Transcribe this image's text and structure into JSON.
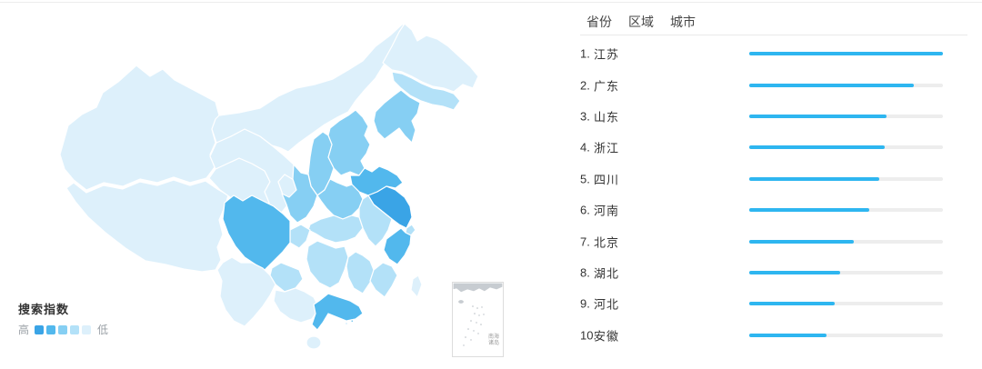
{
  "colors": {
    "bar": "#2eb6f0",
    "bar_track": "#ededed",
    "levels": [
      "#3aa4e6",
      "#52b8ed",
      "#86cff3",
      "#b3e1f8",
      "#ddf0fb"
    ],
    "map_border": "#ffffff",
    "inset_land": "#c7ccd1"
  },
  "tabs": [
    {
      "label": "省份",
      "active": true
    },
    {
      "label": "区域",
      "active": false
    },
    {
      "label": "城市",
      "active": false
    }
  ],
  "ranking": [
    {
      "rank": "1.",
      "name": "江苏",
      "percent": 100
    },
    {
      "rank": "2.",
      "name": "广东",
      "percent": 85
    },
    {
      "rank": "3.",
      "name": "山东",
      "percent": 71
    },
    {
      "rank": "4.",
      "name": "浙江",
      "percent": 70
    },
    {
      "rank": "5.",
      "name": "四川",
      "percent": 67
    },
    {
      "rank": "6.",
      "name": "河南",
      "percent": 62
    },
    {
      "rank": "7.",
      "name": "北京",
      "percent": 54
    },
    {
      "rank": "8.",
      "name": "湖北",
      "percent": 47
    },
    {
      "rank": "9.",
      "name": "河北",
      "percent": 44
    },
    {
      "rank": "10.",
      "name": "安徽",
      "percent": 40
    }
  ],
  "legend": {
    "title": "搜索指数",
    "high_label": "高",
    "low_label": "低"
  },
  "inset": {
    "label_line1": "南海",
    "label_line2": "诸岛"
  },
  "map": {
    "province_levels": {
      "xinjiang": 5,
      "xizang": 5,
      "qinghai": 5,
      "gansu": 5,
      "ningxia": 5,
      "neimenggu": 5,
      "heilongjiang": 5,
      "jilin": 4,
      "liaoning": 3,
      "hebei": 3,
      "beijing": 3,
      "tianjin": 4,
      "shanxi": 3,
      "shaanxi": 3,
      "shandong": 2,
      "henan": 3,
      "jiangsu": 1,
      "anhui": 4,
      "shanghai": 4,
      "zhejiang": 2,
      "hubei": 4,
      "chongqing": 4,
      "sichuan": 2,
      "guizhou": 4,
      "hunan": 4,
      "jiangxi": 4,
      "fujian": 4,
      "yunnan": 5,
      "guangxi": 5,
      "guangdong": 2,
      "hainan": 5,
      "taiwan": 5
    }
  },
  "chart_data": [
    {
      "type": "heatmap",
      "subtype": "china-choropleth-map",
      "title": "搜索指数",
      "legend": {
        "high": "高",
        "low": "低",
        "position": "bottom-left"
      },
      "levels_note": "1 = highest search index, 5 = lowest",
      "regions": {
        "江苏": 1,
        "广东": 2,
        "山东": 2,
        "浙江": 2,
        "四川": 2,
        "河南": 3,
        "北京": 3,
        "河北": 3,
        "山西": 3,
        "辽宁": 3,
        "陕西": 3,
        "湖北": 4,
        "安徽": 4,
        "湖南": 4,
        "江西": 4,
        "福建": 4,
        "重庆": 4,
        "天津": 4,
        "吉林": 4,
        "贵州": 4,
        "上海": 4,
        "新疆": 5,
        "西藏": 5,
        "青海": 5,
        "甘肃": 5,
        "宁夏": 5,
        "内蒙古": 5,
        "黑龙江": 5,
        "云南": 5,
        "广西": 5,
        "海南": 5,
        "台湾": 5
      }
    },
    {
      "type": "bar",
      "orientation": "horizontal",
      "categories": [
        "江苏",
        "广东",
        "山东",
        "浙江",
        "四川",
        "河南",
        "北京",
        "湖北",
        "河北",
        "安徽"
      ],
      "values": [
        100,
        85,
        71,
        70,
        67,
        62,
        54,
        47,
        44,
        40
      ],
      "value_unit": "percent_of_max_bar_length",
      "title": "",
      "xlabel": "",
      "ylabel": "",
      "xlim": [
        0,
        100
      ],
      "grid": false,
      "legend_position": "none"
    }
  ]
}
